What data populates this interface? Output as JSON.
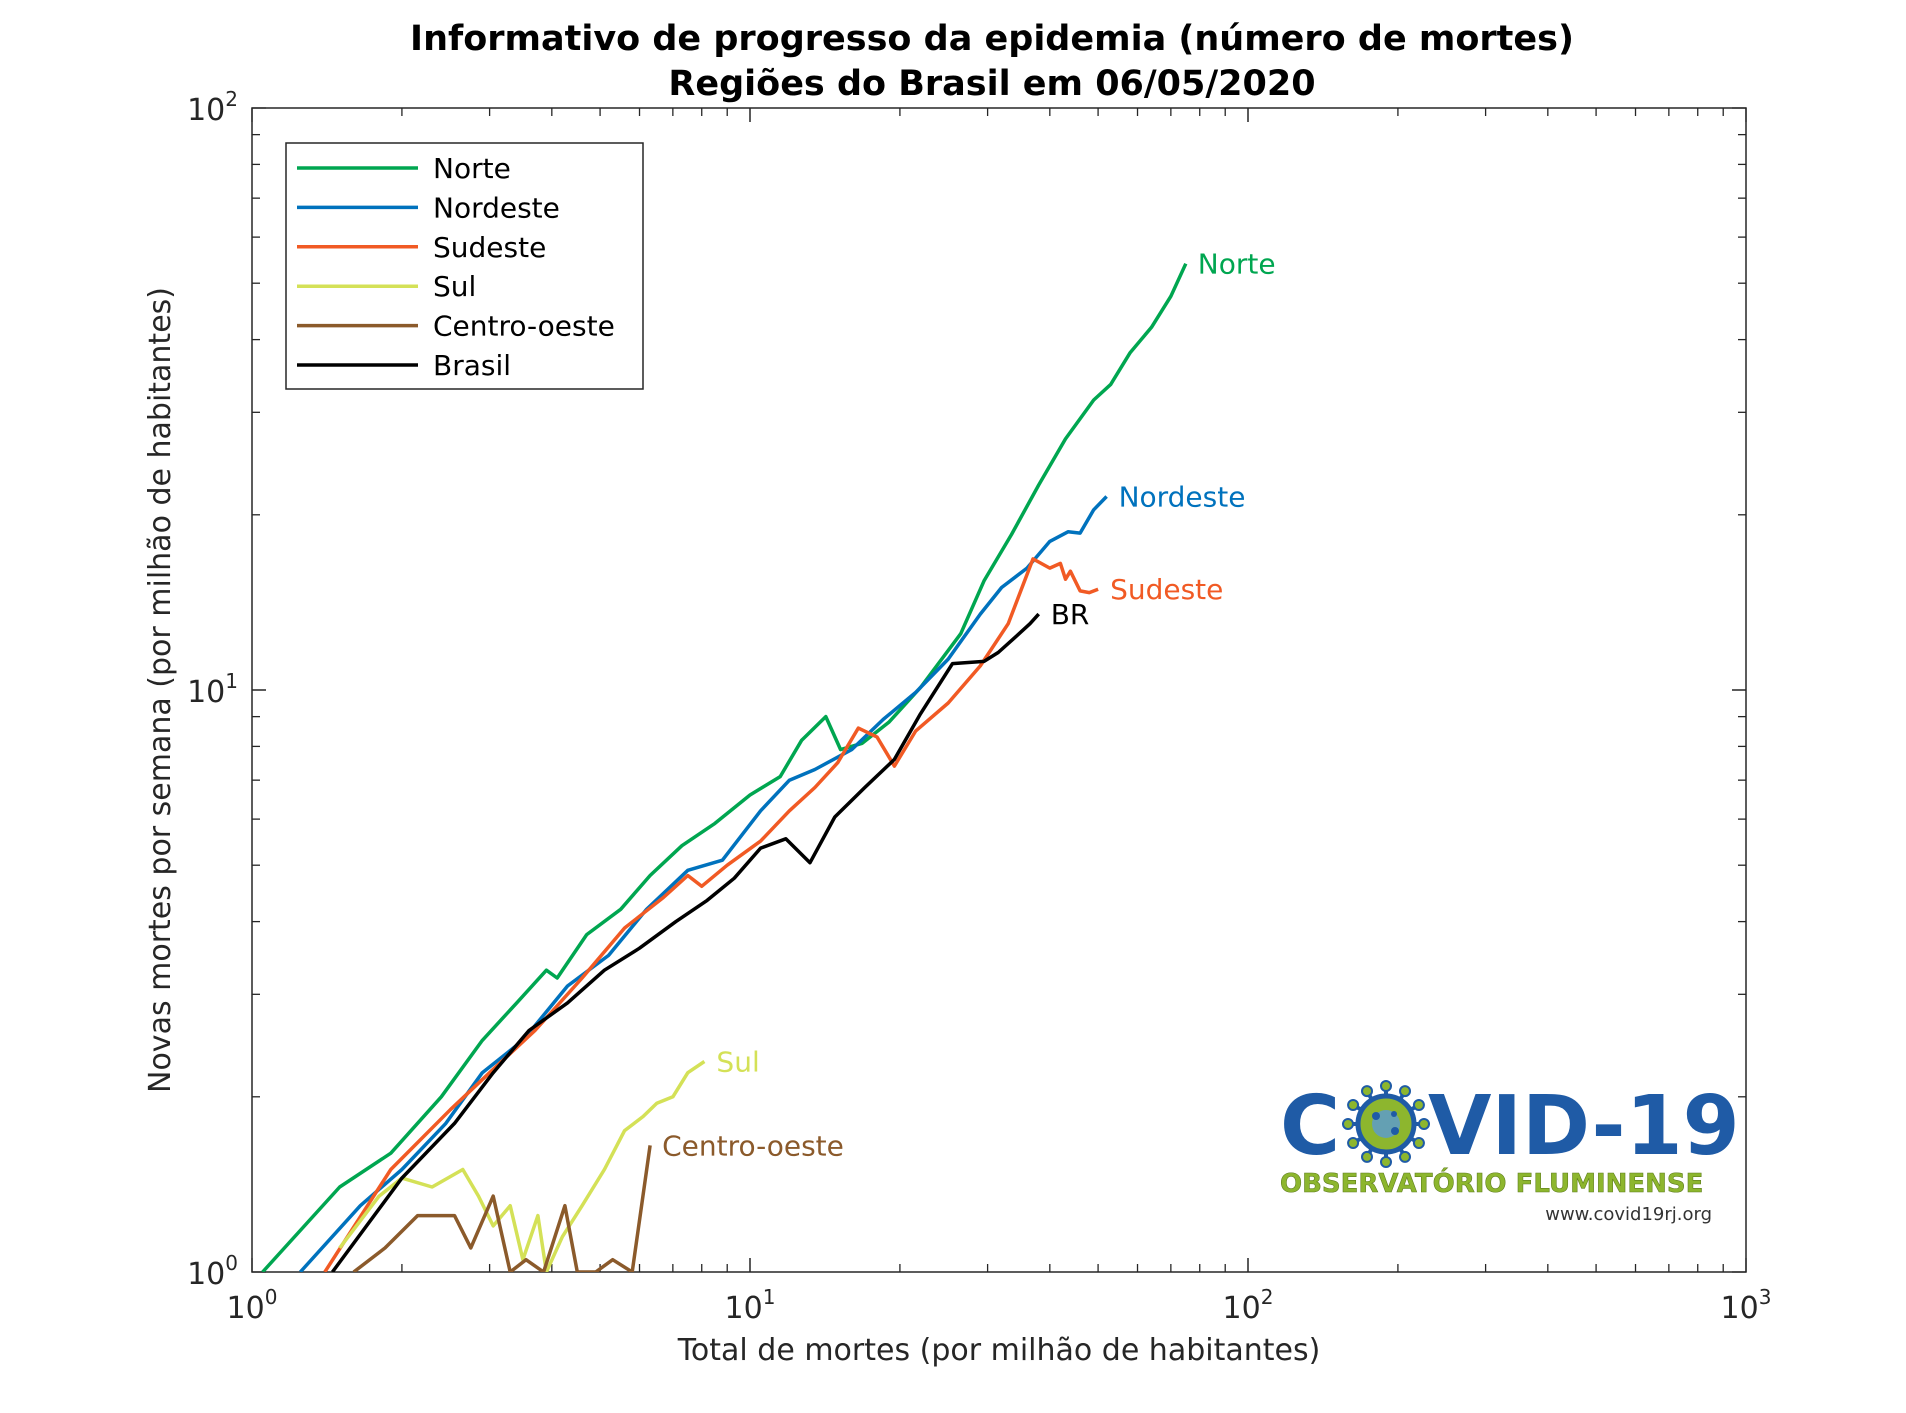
{
  "chart_data": {
    "type": "line",
    "title": "Informativo de progresso da epidemia (número de mortes)",
    "subtitle": "Regiões do Brasil em 06/05/2020",
    "xlabel": "Total de mortes (por milhão de habitantes)",
    "ylabel": "Novas mortes por semana (por milhão de habitantes)",
    "xscale": "log",
    "yscale": "log",
    "xlim": [
      1,
      1000
    ],
    "ylim": [
      1,
      100
    ],
    "x_ticks": [
      {
        "value": 1,
        "base": "10",
        "exp": "0"
      },
      {
        "value": 10,
        "base": "10",
        "exp": "1"
      },
      {
        "value": 100,
        "base": "10",
        "exp": "2"
      },
      {
        "value": 1000,
        "base": "10",
        "exp": "3"
      }
    ],
    "y_ticks": [
      {
        "value": 1,
        "base": "10",
        "exp": "0"
      },
      {
        "value": 10,
        "base": "10",
        "exp": "1"
      },
      {
        "value": 100,
        "base": "10",
        "exp": "2"
      }
    ],
    "grid": false,
    "legend_position": "top-left",
    "series": [
      {
        "name": "Norte",
        "label": "Norte",
        "color": "#00A650",
        "points": [
          [
            1.05,
            1.0
          ],
          [
            1.5,
            1.4
          ],
          [
            1.9,
            1.6
          ],
          [
            2.4,
            2.0
          ],
          [
            2.9,
            2.5
          ],
          [
            3.4,
            2.9
          ],
          [
            3.9,
            3.3
          ],
          [
            4.1,
            3.2
          ],
          [
            4.7,
            3.8
          ],
          [
            5.5,
            4.2
          ],
          [
            6.3,
            4.8
          ],
          [
            7.3,
            5.4
          ],
          [
            8.5,
            5.9
          ],
          [
            10.0,
            6.6
          ],
          [
            11.5,
            7.1
          ],
          [
            12.7,
            8.2
          ],
          [
            14.2,
            9.0
          ],
          [
            15.2,
            7.9
          ],
          [
            16.8,
            8.1
          ],
          [
            19.0,
            8.8
          ],
          [
            22.0,
            10.1
          ],
          [
            26.5,
            12.5
          ],
          [
            29.5,
            15.4
          ],
          [
            33.5,
            18.5
          ],
          [
            38.0,
            22.5
          ],
          [
            43.0,
            27.0
          ],
          [
            49.0,
            31.5
          ],
          [
            53.0,
            33.5
          ],
          [
            58.0,
            38.0
          ],
          [
            64.0,
            42.0
          ],
          [
            70.0,
            47.5
          ],
          [
            75.0,
            54.0
          ]
        ]
      },
      {
        "name": "Nordeste",
        "label": "Nordeste",
        "color": "#0072BD",
        "points": [
          [
            1.25,
            1.0
          ],
          [
            1.65,
            1.3
          ],
          [
            2.0,
            1.5
          ],
          [
            2.45,
            1.8
          ],
          [
            2.9,
            2.2
          ],
          [
            3.5,
            2.5
          ],
          [
            4.3,
            3.1
          ],
          [
            5.2,
            3.5
          ],
          [
            6.2,
            4.2
          ],
          [
            7.5,
            4.9
          ],
          [
            8.8,
            5.1
          ],
          [
            10.5,
            6.2
          ],
          [
            12.0,
            7.0
          ],
          [
            13.5,
            7.3
          ],
          [
            16.0,
            7.9
          ],
          [
            18.5,
            8.9
          ],
          [
            21.5,
            9.9
          ],
          [
            25.0,
            11.3
          ],
          [
            29.0,
            13.5
          ],
          [
            32.0,
            15.0
          ],
          [
            36.0,
            16.2
          ],
          [
            40.0,
            18.0
          ],
          [
            43.5,
            18.7
          ],
          [
            46.0,
            18.6
          ],
          [
            49.0,
            20.4
          ],
          [
            52.0,
            21.5
          ]
        ]
      },
      {
        "name": "Sudeste",
        "label": "Sudeste",
        "color": "#F15A24",
        "points": [
          [
            1.4,
            1.0
          ],
          [
            1.9,
            1.5
          ],
          [
            2.5,
            1.9
          ],
          [
            3.0,
            2.2
          ],
          [
            3.7,
            2.6
          ],
          [
            4.6,
            3.2
          ],
          [
            5.6,
            3.9
          ],
          [
            6.7,
            4.4
          ],
          [
            7.5,
            4.8
          ],
          [
            8.0,
            4.6
          ],
          [
            9.0,
            5.0
          ],
          [
            10.5,
            5.5
          ],
          [
            12.0,
            6.2
          ],
          [
            13.5,
            6.8
          ],
          [
            15.0,
            7.5
          ],
          [
            16.5,
            8.6
          ],
          [
            18.0,
            8.3
          ],
          [
            19.5,
            7.4
          ],
          [
            21.5,
            8.5
          ],
          [
            25.0,
            9.5
          ],
          [
            29.0,
            11.0
          ],
          [
            33.0,
            13.0
          ],
          [
            37.0,
            16.8
          ],
          [
            40.0,
            16.2
          ],
          [
            42.0,
            16.5
          ],
          [
            43.0,
            15.5
          ],
          [
            44.0,
            16.0
          ],
          [
            46.0,
            14.8
          ],
          [
            48.0,
            14.7
          ],
          [
            50.0,
            14.9
          ]
        ]
      },
      {
        "name": "Sul",
        "label": "Sul",
        "color": "#D4E157",
        "points": [
          [
            1.5,
            1.1
          ],
          [
            1.8,
            1.35
          ],
          [
            2.0,
            1.45
          ],
          [
            2.3,
            1.4
          ],
          [
            2.65,
            1.5
          ],
          [
            2.85,
            1.35
          ],
          [
            3.05,
            1.2
          ],
          [
            3.3,
            1.3
          ],
          [
            3.5,
            1.05
          ],
          [
            3.75,
            1.25
          ],
          [
            3.9,
            1.0
          ],
          [
            4.2,
            1.15
          ],
          [
            4.6,
            1.3
          ],
          [
            5.1,
            1.5
          ],
          [
            5.6,
            1.75
          ],
          [
            6.1,
            1.85
          ],
          [
            6.5,
            1.95
          ],
          [
            7.0,
            2.0
          ],
          [
            7.5,
            2.2
          ],
          [
            8.1,
            2.3
          ]
        ]
      },
      {
        "name": "Centro-oeste",
        "label": "Centro-oeste",
        "color": "#8B5A2B",
        "points": [
          [
            1.6,
            1.0
          ],
          [
            1.85,
            1.1
          ],
          [
            2.15,
            1.25
          ],
          [
            2.55,
            1.25
          ],
          [
            2.75,
            1.1
          ],
          [
            3.05,
            1.35
          ],
          [
            3.3,
            1.0
          ],
          [
            3.55,
            1.05
          ],
          [
            3.85,
            1.0
          ],
          [
            4.25,
            1.3
          ],
          [
            4.5,
            1.0
          ],
          [
            4.9,
            1.0
          ],
          [
            5.3,
            1.05
          ],
          [
            5.8,
            1.0
          ],
          [
            6.3,
            1.65
          ]
        ]
      },
      {
        "name": "Brasil",
        "label": "BR",
        "color": "#000000",
        "points": [
          [
            1.45,
            1.0
          ],
          [
            2.0,
            1.45
          ],
          [
            2.55,
            1.8
          ],
          [
            3.05,
            2.2
          ],
          [
            3.6,
            2.6
          ],
          [
            4.3,
            2.9
          ],
          [
            5.1,
            3.3
          ],
          [
            6.0,
            3.6
          ],
          [
            7.1,
            4.0
          ],
          [
            8.2,
            4.35
          ],
          [
            9.3,
            4.75
          ],
          [
            10.5,
            5.35
          ],
          [
            11.8,
            5.55
          ],
          [
            13.2,
            5.05
          ],
          [
            14.8,
            6.05
          ],
          [
            17.0,
            6.8
          ],
          [
            19.5,
            7.6
          ],
          [
            22.0,
            9.1
          ],
          [
            25.5,
            11.1
          ],
          [
            29.5,
            11.2
          ],
          [
            31.5,
            11.6
          ],
          [
            34.0,
            12.3
          ],
          [
            36.5,
            13.0
          ],
          [
            38.0,
            13.5
          ]
        ]
      }
    ]
  },
  "logo": {
    "title_left": "C",
    "title_right": "VID-19",
    "subtitle": "OBSERVATÓRIO FLUMINENSE",
    "url": "www.covid19rj.org",
    "color_title": "#1F5BA6",
    "color_subtitle": "#8DB62E",
    "virus_icon": "coronavirus-icon"
  }
}
